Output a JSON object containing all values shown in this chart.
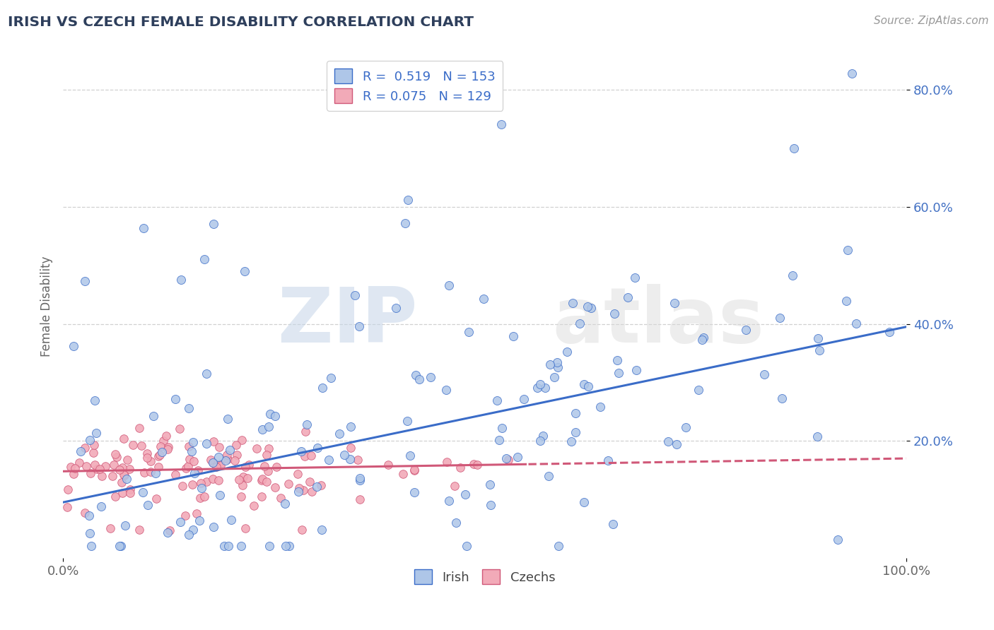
{
  "title": "IRISH VS CZECH FEMALE DISABILITY CORRELATION CHART",
  "source": "Source: ZipAtlas.com",
  "ylabel": "Female Disability",
  "xlim": [
    0.0,
    1.0
  ],
  "ylim": [
    0.0,
    0.86
  ],
  "ytick_positions": [
    0.2,
    0.4,
    0.6,
    0.8
  ],
  "ytick_labels": [
    "20.0%",
    "40.0%",
    "60.0%",
    "80.0%"
  ],
  "legend_r1": "R =  0.519",
  "legend_n1": "N = 153",
  "legend_r2": "R = 0.075",
  "legend_n2": "N = 129",
  "irish_color": "#aec6e8",
  "czech_color": "#f2aab8",
  "irish_line_color": "#3a6cc8",
  "czech_line_color": "#d05878",
  "title_color": "#2e3f5c",
  "watermark_zip": "ZIP",
  "watermark_atlas": "atlas",
  "background_color": "#ffffff",
  "grid_color": "#cccccc",
  "irish_slope": 0.3,
  "irish_intercept": 0.095,
  "czech_slope": 0.022,
  "czech_intercept": 0.148
}
